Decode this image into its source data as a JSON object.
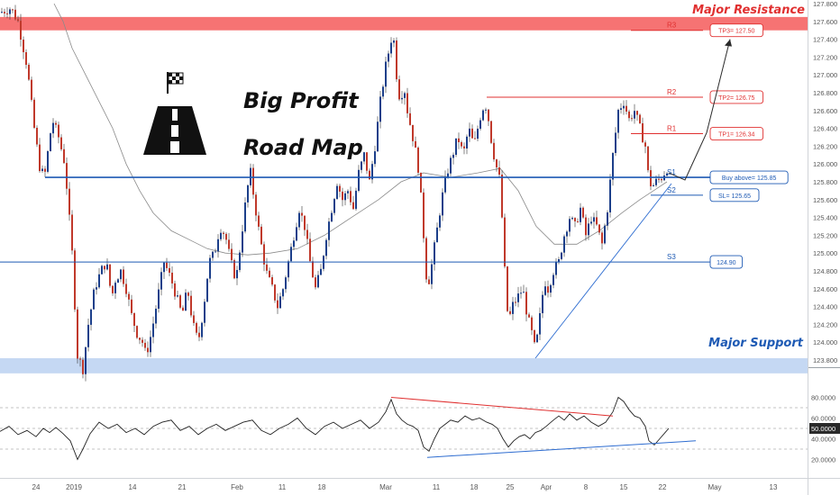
{
  "chart_data": {
    "type": "candlestick",
    "price_axis": {
      "ylim": [
        123.8,
        127.8
      ],
      "ticks": [
        "127.800",
        "127.600",
        "127.400",
        "127.200",
        "127.000",
        "126.800",
        "126.600",
        "126.400",
        "126.200",
        "126.000",
        "125.800",
        "125.600",
        "125.400",
        "125.200",
        "125.000",
        "124.800",
        "124.600",
        "124.400",
        "124.200",
        "124.000",
        "123.800"
      ]
    },
    "osc_axis": {
      "ylim": [
        10,
        90
      ],
      "ticks": [
        "80.0000",
        "60.0000",
        "50.0000",
        "40.0000",
        "20.0000"
      ],
      "current": "50.0000"
    },
    "time_axis": {
      "labels": [
        "24",
        "2019",
        "14",
        "21",
        "Feb",
        "11",
        "18",
        "Mar",
        "11",
        "18",
        "25",
        "Apr",
        "8",
        "15",
        "22",
        "May",
        "13"
      ]
    },
    "zones": {
      "resistance": {
        "label": "Major Resistance",
        "range": [
          127.5,
          127.65
        ],
        "color": "#f45b5b"
      },
      "support": {
        "label": "Major Support",
        "range": [
          123.65,
          123.82
        ],
        "color": "#c5d8f3"
      }
    },
    "levels": [
      {
        "name": "R3",
        "value": 127.5,
        "color": "#e03030"
      },
      {
        "name": "R2",
        "value": 126.75,
        "color": "#e03030"
      },
      {
        "name": "R1",
        "value": 126.34,
        "color": "#e03030"
      },
      {
        "name": "S1",
        "value": 125.85,
        "color": "#1e5ab4"
      },
      {
        "name": "S2",
        "value": 125.65,
        "color": "#1e5ab4"
      },
      {
        "name": "S3",
        "value": 124.9,
        "color": "#1e5ab4"
      }
    ],
    "callouts": [
      {
        "text": "TP3= 127.50",
        "value": 127.5,
        "color": "#e03030"
      },
      {
        "text": "TP2= 126.75",
        "value": 126.75,
        "color": "#e03030"
      },
      {
        "text": "TP1= 126.34",
        "value": 126.34,
        "color": "#e03030"
      },
      {
        "text": "Buy above= 125.85",
        "value": 125.85,
        "color": "#1e5ab4"
      },
      {
        "text": "SL= 125.65",
        "value": 125.65,
        "color": "#1e5ab4"
      },
      {
        "text": "124.90",
        "value": 124.9,
        "color": "#1e5ab4"
      }
    ],
    "title_lines": [
      "Big Profit",
      "Road Map"
    ],
    "price_path": [
      [
        0,
        127.7
      ],
      [
        12,
        127.75
      ],
      [
        20,
        127.6
      ],
      [
        30,
        127.1
      ],
      [
        38,
        126.4
      ],
      [
        45,
        125.9
      ],
      [
        50,
        125.9
      ],
      [
        58,
        126.5
      ],
      [
        65,
        126.3
      ],
      [
        72,
        126.0
      ],
      [
        80,
        125.0
      ],
      [
        86,
        123.85
      ],
      [
        92,
        123.7
      ],
      [
        98,
        124.2
      ],
      [
        105,
        124.6
      ],
      [
        112,
        124.8
      ],
      [
        118,
        124.9
      ],
      [
        124,
        124.5
      ],
      [
        128,
        124.7
      ],
      [
        134,
        124.8
      ],
      [
        140,
        124.6
      ],
      [
        146,
        124.3
      ],
      [
        152,
        124.1
      ],
      [
        158,
        124.0
      ],
      [
        162,
        123.85
      ],
      [
        168,
        124.1
      ],
      [
        175,
        124.5
      ],
      [
        182,
        124.9
      ],
      [
        190,
        124.7
      ],
      [
        196,
        124.5
      ],
      [
        202,
        124.3
      ],
      [
        208,
        124.6
      ],
      [
        214,
        124.2
      ],
      [
        220,
        124.0
      ],
      [
        226,
        124.4
      ],
      [
        232,
        124.9
      ],
      [
        238,
        125.0
      ],
      [
        244,
        125.3
      ],
      [
        250,
        125.2
      ],
      [
        256,
        124.9
      ],
      [
        262,
        124.7
      ],
      [
        268,
        125.2
      ],
      [
        274,
        125.7
      ],
      [
        278,
        125.9
      ],
      [
        282,
        125.6
      ],
      [
        288,
        125.2
      ],
      [
        295,
        124.8
      ],
      [
        302,
        124.6
      ],
      [
        308,
        124.4
      ],
      [
        314,
        124.6
      ],
      [
        320,
        124.9
      ],
      [
        326,
        125.2
      ],
      [
        332,
        125.5
      ],
      [
        338,
        125.3
      ],
      [
        344,
        124.9
      ],
      [
        350,
        124.6
      ],
      [
        356,
        124.8
      ],
      [
        362,
        125.2
      ],
      [
        368,
        125.5
      ],
      [
        374,
        125.8
      ],
      [
        380,
        125.6
      ],
      [
        386,
        125.7
      ],
      [
        392,
        125.5
      ],
      [
        398,
        125.9
      ],
      [
        404,
        126.1
      ],
      [
        410,
        125.8
      ],
      [
        416,
        126.2
      ],
      [
        422,
        126.7
      ],
      [
        428,
        127.1
      ],
      [
        432,
        127.3
      ],
      [
        436,
        127.5
      ],
      [
        440,
        127.0
      ],
      [
        444,
        126.7
      ],
      [
        448,
        126.9
      ],
      [
        452,
        126.6
      ],
      [
        456,
        126.4
      ],
      [
        460,
        126.2
      ],
      [
        465,
        125.9
      ],
      [
        470,
        125.2
      ],
      [
        474,
        124.6
      ],
      [
        478,
        124.8
      ],
      [
        484,
        125.2
      ],
      [
        490,
        125.6
      ],
      [
        496,
        125.9
      ],
      [
        502,
        126.1
      ],
      [
        508,
        126.3
      ],
      [
        514,
        126.1
      ],
      [
        520,
        126.4
      ],
      [
        526,
        126.2
      ],
      [
        532,
        126.5
      ],
      [
        538,
        126.7
      ],
      [
        542,
        126.5
      ],
      [
        546,
        126.2
      ],
      [
        550,
        126.0
      ],
      [
        555,
        125.8
      ],
      [
        560,
        124.8
      ],
      [
        564,
        124.2
      ],
      [
        568,
        124.4
      ],
      [
        574,
        124.5
      ],
      [
        580,
        124.6
      ],
      [
        585,
        124.3
      ],
      [
        590,
        124.1
      ],
      [
        594,
        123.9
      ],
      [
        598,
        124.2
      ],
      [
        604,
        124.7
      ],
      [
        608,
        124.6
      ],
      [
        614,
        124.8
      ],
      [
        620,
        124.9
      ],
      [
        626,
        125.2
      ],
      [
        632,
        125.4
      ],
      [
        638,
        125.3
      ],
      [
        644,
        125.5
      ],
      [
        650,
        125.2
      ],
      [
        656,
        125.4
      ],
      [
        662,
        125.3
      ],
      [
        668,
        125.1
      ],
      [
        674,
        125.5
      ],
      [
        680,
        126.1
      ],
      [
        686,
        126.6
      ],
      [
        692,
        126.7
      ],
      [
        698,
        126.5
      ],
      [
        704,
        126.6
      ],
      [
        710,
        126.4
      ],
      [
        716,
        126.2
      ],
      [
        720,
        125.8
      ],
      [
        724,
        125.75
      ],
      [
        728,
        125.8
      ],
      [
        734,
        125.85
      ],
      [
        740,
        125.95
      ]
    ],
    "ma_path": [
      [
        60,
        127.8
      ],
      [
        70,
        127.6
      ],
      [
        80,
        127.3
      ],
      [
        95,
        127.0
      ],
      [
        110,
        126.7
      ],
      [
        125,
        126.4
      ],
      [
        140,
        126.0
      ],
      [
        155,
        125.7
      ],
      [
        170,
        125.45
      ],
      [
        190,
        125.25
      ],
      [
        210,
        125.15
      ],
      [
        230,
        125.05
      ],
      [
        250,
        125.0
      ],
      [
        275,
        124.98
      ],
      [
        300,
        125.0
      ],
      [
        330,
        125.05
      ],
      [
        360,
        125.2
      ],
      [
        390,
        125.4
      ],
      [
        420,
        125.6
      ],
      [
        445,
        125.8
      ],
      [
        470,
        125.9
      ],
      [
        500,
        125.85
      ],
      [
        530,
        125.9
      ],
      [
        555,
        125.95
      ],
      [
        575,
        125.7
      ],
      [
        595,
        125.3
      ],
      [
        615,
        125.1
      ],
      [
        640,
        125.1
      ],
      [
        665,
        125.25
      ],
      [
        690,
        125.45
      ],
      [
        710,
        125.6
      ],
      [
        725,
        125.7
      ],
      [
        740,
        125.8
      ]
    ],
    "trendline": [
      [
        594,
        123.82
      ],
      [
        745,
        125.78
      ]
    ],
    "projection": [
      [
        742,
        125.9
      ],
      [
        760,
        125.82
      ],
      [
        784,
        126.35
      ],
      [
        810,
        127.4
      ]
    ],
    "osc_path": [
      [
        0,
        47
      ],
      [
        10,
        52
      ],
      [
        20,
        44
      ],
      [
        30,
        48
      ],
      [
        40,
        42
      ],
      [
        48,
        50
      ],
      [
        55,
        46
      ],
      [
        62,
        51
      ],
      [
        70,
        45
      ],
      [
        78,
        38
      ],
      [
        86,
        20
      ],
      [
        92,
        30
      ],
      [
        100,
        45
      ],
      [
        110,
        56
      ],
      [
        120,
        50
      ],
      [
        130,
        54
      ],
      [
        140,
        46
      ],
      [
        150,
        50
      ],
      [
        160,
        44
      ],
      [
        170,
        52
      ],
      [
        180,
        56
      ],
      [
        190,
        58
      ],
      [
        200,
        48
      ],
      [
        210,
        52
      ],
      [
        220,
        44
      ],
      [
        230,
        50
      ],
      [
        240,
        54
      ],
      [
        250,
        48
      ],
      [
        260,
        52
      ],
      [
        270,
        56
      ],
      [
        280,
        58
      ],
      [
        290,
        48
      ],
      [
        300,
        44
      ],
      [
        310,
        50
      ],
      [
        320,
        54
      ],
      [
        330,
        60
      ],
      [
        340,
        50
      ],
      [
        350,
        44
      ],
      [
        360,
        52
      ],
      [
        370,
        56
      ],
      [
        380,
        50
      ],
      [
        390,
        54
      ],
      [
        400,
        58
      ],
      [
        410,
        50
      ],
      [
        420,
        56
      ],
      [
        428,
        66
      ],
      [
        434,
        78
      ],
      [
        440,
        64
      ],
      [
        446,
        58
      ],
      [
        452,
        54
      ],
      [
        458,
        52
      ],
      [
        464,
        48
      ],
      [
        470,
        32
      ],
      [
        476,
        28
      ],
      [
        482,
        40
      ],
      [
        488,
        50
      ],
      [
        494,
        54
      ],
      [
        500,
        58
      ],
      [
        508,
        56
      ],
      [
        516,
        62
      ],
      [
        524,
        58
      ],
      [
        532,
        60
      ],
      [
        540,
        56
      ],
      [
        546,
        54
      ],
      [
        552,
        50
      ],
      [
        558,
        40
      ],
      [
        564,
        32
      ],
      [
        570,
        38
      ],
      [
        576,
        42
      ],
      [
        582,
        44
      ],
      [
        588,
        40
      ],
      [
        594,
        46
      ],
      [
        600,
        48
      ],
      [
        606,
        52
      ],
      [
        614,
        58
      ],
      [
        620,
        62
      ],
      [
        626,
        58
      ],
      [
        632,
        64
      ],
      [
        640,
        58
      ],
      [
        648,
        62
      ],
      [
        656,
        56
      ],
      [
        664,
        52
      ],
      [
        672,
        56
      ],
      [
        680,
        66
      ],
      [
        686,
        80
      ],
      [
        692,
        76
      ],
      [
        698,
        68
      ],
      [
        704,
        62
      ],
      [
        710,
        60
      ],
      [
        716,
        52
      ],
      [
        720,
        38
      ],
      [
        726,
        34
      ],
      [
        732,
        40
      ],
      [
        738,
        46
      ],
      [
        742,
        50
      ]
    ],
    "osc_lines": {
      "red": [
        [
          434,
          80
        ],
        [
          680,
          62
        ]
      ],
      "blue": [
        [
          474,
          22
        ],
        [
          772,
          38
        ]
      ]
    }
  }
}
